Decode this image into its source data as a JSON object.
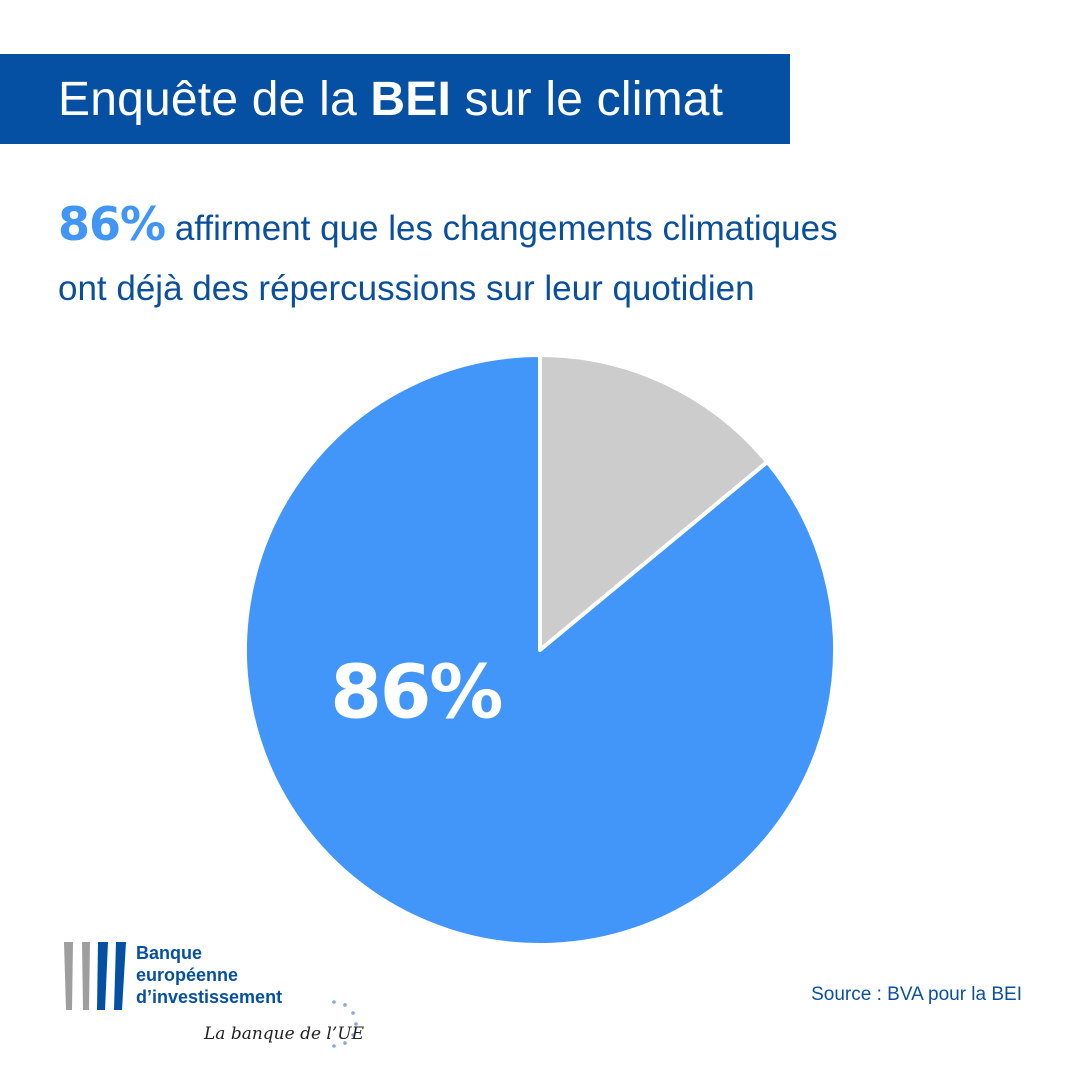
{
  "header": {
    "title_before": "Enquête de la ",
    "title_bold": "BEI",
    "title_after": " sur le climat"
  },
  "subtitle": {
    "highlight": "86%",
    "text_line1": " affirment que les changements climatiques",
    "text_line2": "ont déjà des répercussions sur leur quotidien"
  },
  "colors": {
    "banner": "#0550a3",
    "accent": "#4195f5",
    "pie_main": "#4296f9",
    "pie_rest": "#cccccc",
    "text_blue": "#0a4f9c"
  },
  "chart_data": {
    "type": "pie",
    "slices": [
      {
        "value": 86,
        "color": "#4296f9",
        "label": "86%"
      },
      {
        "value": 14,
        "color": "#cccccc"
      }
    ]
  },
  "logo": {
    "line1": "Banque",
    "line2": "européenne",
    "line3": "d’investissement",
    "tagline": "La banque de l’UE"
  },
  "source": "Source : BVA pour la BEI"
}
